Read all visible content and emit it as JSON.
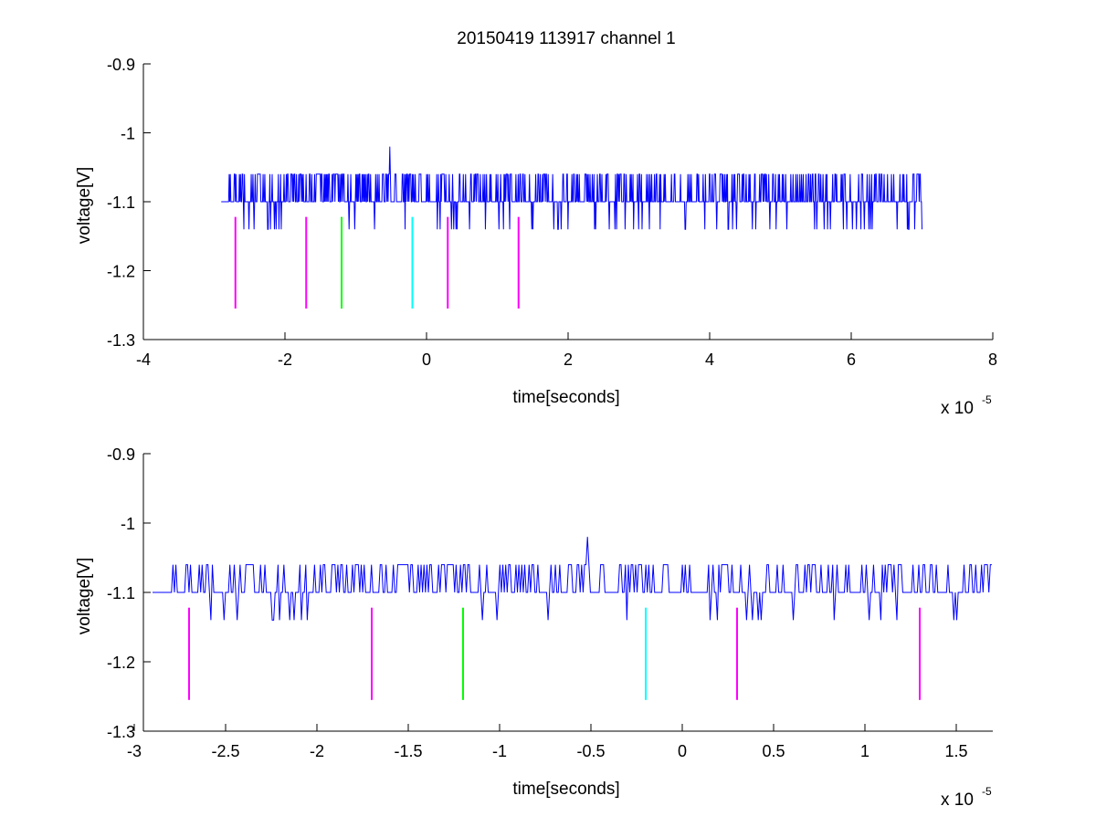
{
  "figure": {
    "title": "20150419 113917 channel 1"
  },
  "colors": {
    "signal": "#0000ff",
    "marker_magenta": "#ff00ff",
    "marker_green": "#00ff00",
    "marker_cyan": "#00ffff",
    "axes": "#000000",
    "background": "#ffffff"
  },
  "chart_data": [
    {
      "type": "line",
      "title": "20150419 113917 channel 1",
      "xlabel": "time[seconds]",
      "ylabel": "voltage[V]",
      "x_exponent_label": "x 10",
      "x_exponent": "-5",
      "xlim": [
        -4e-05,
        8e-05
      ],
      "ylim": [
        -1.3,
        -0.9
      ],
      "xticks": [
        -4,
        -2,
        0,
        2,
        4,
        6,
        8
      ],
      "xtick_labels": [
        "-4",
        "-2",
        "0",
        "2",
        "4",
        "6",
        "8"
      ],
      "yticks": [
        -1.3,
        -1.2,
        -1.1,
        -1.0,
        -0.9
      ],
      "ytick_labels": [
        "-1.3",
        "-1.2",
        "-1.1",
        "-1",
        "-0.9"
      ],
      "grid": false,
      "signal": {
        "x_start": -2.9e-05,
        "x_end": 7e-05,
        "baseline": -1.1,
        "high": -1.06,
        "low": -1.14,
        "peak": {
          "x": -5.2e-06,
          "y": -1.02
        }
      },
      "markers": [
        {
          "x": -2.7e-05,
          "y_top": -1.122,
          "y_bottom": -1.255,
          "color": "#ff00ff"
        },
        {
          "x": -1.7e-05,
          "y_top": -1.122,
          "y_bottom": -1.255,
          "color": "#ff00ff"
        },
        {
          "x": -1.2e-05,
          "y_top": -1.122,
          "y_bottom": -1.255,
          "color": "#00ff00"
        },
        {
          "x": -2e-06,
          "y_top": -1.122,
          "y_bottom": -1.255,
          "color": "#00ffff"
        },
        {
          "x": 3e-06,
          "y_top": -1.122,
          "y_bottom": -1.255,
          "color": "#ff00ff"
        },
        {
          "x": 1.3e-05,
          "y_top": -1.122,
          "y_bottom": -1.255,
          "color": "#ff00ff"
        }
      ]
    },
    {
      "type": "line",
      "title": "",
      "xlabel": "time[seconds]",
      "ylabel": "voltage[V]",
      "x_exponent_label": "x 10",
      "x_exponent": "-5",
      "xlim": [
        -2.95e-05,
        1.7e-05
      ],
      "ylim": [
        -1.3,
        -0.9
      ],
      "xticks": [
        -3,
        -2.5,
        -2,
        -1.5,
        -1,
        -0.5,
        0,
        0.5,
        1,
        1.5
      ],
      "xtick_labels": [
        "-3",
        "-2.5",
        "-2",
        "-1.5",
        "-1",
        "-0.5",
        "0",
        "0.5",
        "1",
        "1.5"
      ],
      "yticks": [
        -1.3,
        -1.2,
        -1.1,
        -1.0,
        -0.9
      ],
      "ytick_labels": [
        "-1.3",
        "-1.2",
        "-1.1",
        "-1",
        "-0.9"
      ],
      "grid": false,
      "signal": {
        "x_start": -2.9e-05,
        "x_end": 1.7e-05,
        "baseline": -1.1,
        "high": -1.06,
        "low": -1.14,
        "peak": {
          "x": -5.2e-06,
          "y": -1.02
        }
      },
      "markers": [
        {
          "x": -2.7e-05,
          "y_top": -1.122,
          "y_bottom": -1.255,
          "color": "#ff00ff"
        },
        {
          "x": -1.7e-05,
          "y_top": -1.122,
          "y_bottom": -1.255,
          "color": "#ff00ff"
        },
        {
          "x": -1.2e-05,
          "y_top": -1.122,
          "y_bottom": -1.255,
          "color": "#00ff00"
        },
        {
          "x": -2e-06,
          "y_top": -1.122,
          "y_bottom": -1.255,
          "color": "#00ffff"
        },
        {
          "x": 3e-06,
          "y_top": -1.122,
          "y_bottom": -1.255,
          "color": "#ff00ff"
        },
        {
          "x": 1.3e-05,
          "y_top": -1.122,
          "y_bottom": -1.255,
          "color": "#ff00ff"
        }
      ]
    }
  ]
}
